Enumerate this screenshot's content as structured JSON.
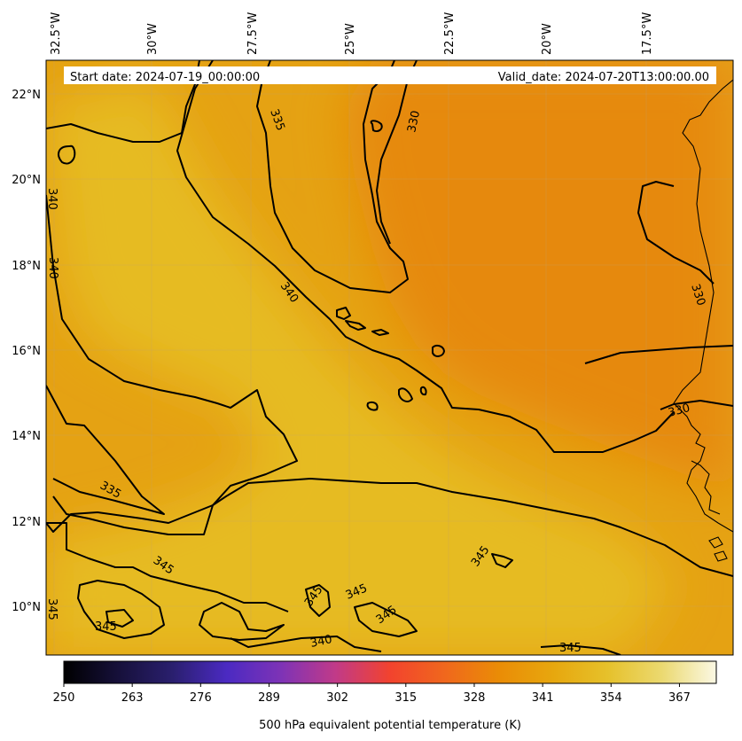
{
  "info_box": {
    "start_date": "Start date: 2024-07-19_00:00:00",
    "valid_date": "Valid_date: 2024-07-20T13:00:00.00"
  },
  "colorbar": {
    "label": "500 hPa equivalent potential temperature (K)",
    "min": 250,
    "max": 374,
    "ticks": [
      "250",
      "263",
      "276",
      "289",
      "302",
      "315",
      "328",
      "341",
      "354",
      "367"
    ],
    "colors": [
      "#000000",
      "#16103a",
      "#2a1f6e",
      "#4b2ac2",
      "#7e33b6",
      "#c13a88",
      "#f2432e",
      "#f0671d",
      "#ea8c06",
      "#e7a70e",
      "#e6c12b",
      "#ebd970",
      "#fbf8e4"
    ]
  },
  "map": {
    "lon_labels": [
      "32.5°W",
      "30°W",
      "27.5°W",
      "25°W",
      "22.5°W",
      "20°W",
      "17.5°W"
    ],
    "lat_labels": [
      "22°N",
      "20°N",
      "18°N",
      "16°N",
      "14°N",
      "12°N",
      "10°N"
    ],
    "field_colors": {
      "low": "#e6890a",
      "mid": "#e5a213",
      "high": "#e6bb24"
    },
    "contour_labels": [
      "335",
      "330",
      "340",
      "340",
      "340",
      "330",
      "330",
      "335",
      "345",
      "345",
      "345",
      "345",
      "345",
      "345",
      "340",
      "345",
      "345"
    ]
  }
}
